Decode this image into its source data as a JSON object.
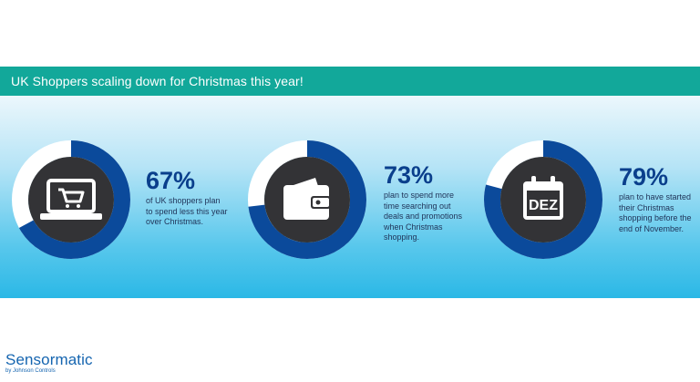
{
  "banner": {
    "title": "UK Shoppers scaling down for Christmas this year!"
  },
  "colors": {
    "banner": "#12a89a",
    "ring_fill": "#0b4a9b",
    "ring_rest": "#ffffff",
    "icon_circle": "#333336",
    "stat_text": "#0a3f8c"
  },
  "stats": [
    {
      "value": "67%",
      "fraction": 0.67,
      "icon": "shopping-cart-laptop-icon",
      "desc_lines": [
        "of UK shoppers plan",
        "to spend less this year",
        "over Christmas."
      ]
    },
    {
      "value": "73%",
      "fraction": 0.73,
      "icon": "wallet-icon",
      "desc_lines": [
        "plan to spend more",
        "time searching out",
        "deals and promotions",
        "when Christmas",
        "shopping."
      ]
    },
    {
      "value": "79%",
      "fraction": 0.79,
      "icon": "calendar-icon",
      "calendar_text": "DEZ",
      "desc_lines": [
        "plan to have started",
        "their Christmas",
        "shopping before the",
        "end of November."
      ]
    }
  ],
  "logo": {
    "name": "Sensormatic",
    "sub": "by Johnson Controls"
  }
}
